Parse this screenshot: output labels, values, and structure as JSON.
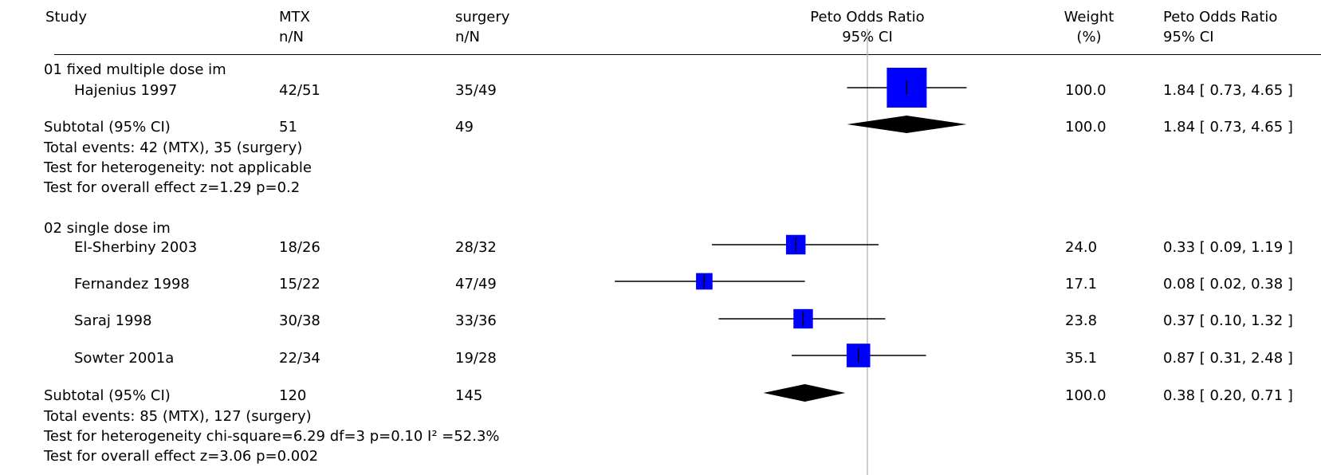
{
  "headers": {
    "study": "Study",
    "treatment": "MTX",
    "treatment_sub": "n/N",
    "control": "surgery",
    "control_sub": "n/N",
    "plot_title": "Peto Odds Ratio",
    "plot_sub": "95% CI",
    "weight": "Weight",
    "weight_sub": "(%)",
    "effect": "Peto Odds Ratio",
    "effect_sub": "95% CI"
  },
  "groups": [
    {
      "title": "01 fixed multiple dose im",
      "studies": [
        {
          "name": "Hajenius 1997",
          "treatment": "42/51",
          "control": "35/49",
          "weight": "100.0",
          "ci_text": "1.84 [ 0.73, 4.65 ]"
        }
      ],
      "subtotal": {
        "label": "Subtotal (95% CI)",
        "treatment": "51",
        "control": "49",
        "weight": "100.0",
        "ci_text": "1.84 [ 0.73, 4.65 ]"
      },
      "notes": [
        "Total events: 42 (MTX), 35 (surgery)",
        "Test for heterogeneity: not applicable",
        "Test for overall effect z=1.29  p=0.2"
      ]
    },
    {
      "title": "02 single dose im",
      "studies": [
        {
          "name": "El-Sherbiny 2003",
          "treatment": "18/26",
          "control": "28/32",
          "weight": "24.0",
          "ci_text": "0.33 [ 0.09, 1.19 ]"
        },
        {
          "name": "Fernandez 1998",
          "treatment": "15/22",
          "control": "47/49",
          "weight": "17.1",
          "ci_text": "0.08 [ 0.02, 0.38 ]"
        },
        {
          "name": "Saraj 1998",
          "treatment": "30/38",
          "control": "33/36",
          "weight": "23.8",
          "ci_text": "0.37 [ 0.10, 1.32 ]"
        },
        {
          "name": "Sowter 2001a",
          "treatment": "22/34",
          "control": "19/28",
          "weight": "35.1",
          "ci_text": "0.87 [ 0.31, 2.48 ]"
        }
      ],
      "subtotal": {
        "label": "Subtotal (95% CI)",
        "treatment": "120",
        "control": "145",
        "weight": "100.0",
        "ci_text": "0.38 [ 0.20, 0.71 ]"
      },
      "notes": [
        "Total events: 85 (MTX), 127 (surgery)",
        "Test for heterogeneity chi-square=6.29 df=3 p=0.10 I² =52.3%",
        "Test for overall effect z=3.06  p=0.002"
      ]
    }
  ],
  "chart_data": {
    "type": "forest",
    "scale": "log",
    "reference_value": 1,
    "colors": {
      "box": "#0000ff",
      "line": "#000000",
      "diamond": "#000000",
      "reference": "#b0b0b0"
    },
    "studies": [
      {
        "group": "01 fixed multiple dose im",
        "name": "Hajenius 1997",
        "or": 1.84,
        "lower": 0.73,
        "upper": 4.65,
        "weight": 100.0
      },
      {
        "group": "02 single dose im",
        "name": "El-Sherbiny 2003",
        "or": 0.33,
        "lower": 0.09,
        "upper": 1.19,
        "weight": 24.0
      },
      {
        "group": "02 single dose im",
        "name": "Fernandez 1998",
        "or": 0.08,
        "lower": 0.02,
        "upper": 0.38,
        "weight": 17.1
      },
      {
        "group": "02 single dose im",
        "name": "Saraj 1998",
        "or": 0.37,
        "lower": 0.1,
        "upper": 1.32,
        "weight": 23.8
      },
      {
        "group": "02 single dose im",
        "name": "Sowter 2001a",
        "or": 0.87,
        "lower": 0.31,
        "upper": 2.48,
        "weight": 35.1
      }
    ],
    "subtotals": [
      {
        "group": "01 fixed multiple dose im",
        "or": 1.84,
        "lower": 0.73,
        "upper": 4.65
      },
      {
        "group": "02 single dose im",
        "or": 0.38,
        "lower": 0.2,
        "upper": 0.71
      }
    ]
  }
}
